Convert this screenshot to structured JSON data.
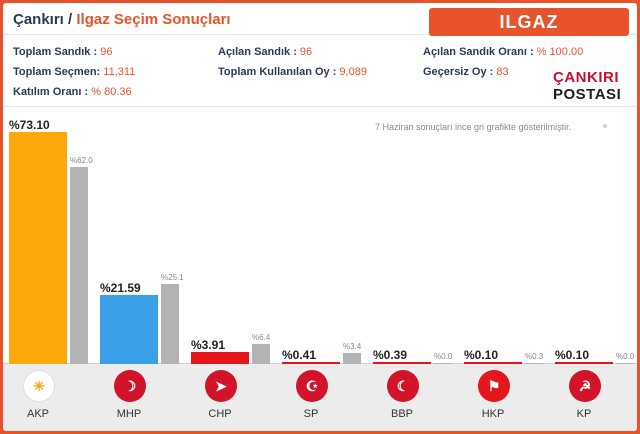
{
  "header": {
    "city": "Çankırı",
    "separator": " / ",
    "subtitle": "Ilgaz Seçim Sonuçları",
    "district_badge": "ILGAZ"
  },
  "stats": {
    "toplam_sandik": {
      "label": "Toplam Sandık : ",
      "value": "96"
    },
    "acilan_sandik": {
      "label": "Açılan Sandık : ",
      "value": "96"
    },
    "acilan_sandik_orani": {
      "label": "Açılan Sandık Oranı : ",
      "value": "% 100.00"
    },
    "toplam_secmen": {
      "label": "Toplam Seçmen: ",
      "value": "11,311"
    },
    "toplam_kullanilan_oy": {
      "label": "Toplam Kullanılan Oy : ",
      "value": "9,089"
    },
    "gecersiz_oy": {
      "label": "Geçersiz Oy : ",
      "value": "83"
    },
    "katilim_orani": {
      "label": "Katılım Oranı : ",
      "value": "% 80.36"
    }
  },
  "logo": {
    "top": "ÇANKIRI",
    "bottom": "POSTASI"
  },
  "note": "7 Haziran sonuçları ince gri grafikte gösterilmiştir.",
  "chart_data": {
    "type": "bar",
    "categories": [
      "AKP",
      "MHP",
      "CHP",
      "SP",
      "BBP",
      "HKP",
      "KP"
    ],
    "series": [
      {
        "name": "current",
        "values": [
          73.1,
          21.59,
          3.91,
          0.41,
          0.39,
          0.1,
          0.1
        ],
        "labels": [
          "%73.10",
          "%21.59",
          "%3.91",
          "%0.41",
          "%0.39",
          "%0.10",
          "%0.10"
        ]
      },
      {
        "name": "7 Haziran",
        "values": [
          62.0,
          25.1,
          6.4,
          3.4,
          0.0,
          0.3,
          0.0
        ],
        "labels": [
          "%62.0",
          "%25.1",
          "%6.4",
          "%3.4",
          "%0.0",
          "%0.3",
          "%0.0"
        ]
      }
    ],
    "colors": [
      "#fca80a",
      "#3aa0e8",
      "#e4161c",
      "#e4161c",
      "#e4161c",
      "#e4161c",
      "#e4161c"
    ],
    "prev_color": "#b3b3b3",
    "ylim": [
      0,
      73.1
    ]
  },
  "parties": [
    {
      "name": "AKP",
      "icon": "lightbulb-icon",
      "color": "#fca80a"
    },
    {
      "name": "MHP",
      "icon": "three-crescents-icon",
      "color": "#d2142a"
    },
    {
      "name": "CHP",
      "icon": "six-arrows-icon",
      "color": "#d2142a"
    },
    {
      "name": "SP",
      "icon": "crescent-star-icon",
      "color": "#d2142a"
    },
    {
      "name": "BBP",
      "icon": "crescent-icon",
      "color": "#d2142a"
    },
    {
      "name": "HKP",
      "icon": "flag-icon",
      "color": "#e4161c"
    },
    {
      "name": "KP",
      "icon": "hammer-sickle-icon",
      "color": "#d2142a"
    }
  ]
}
